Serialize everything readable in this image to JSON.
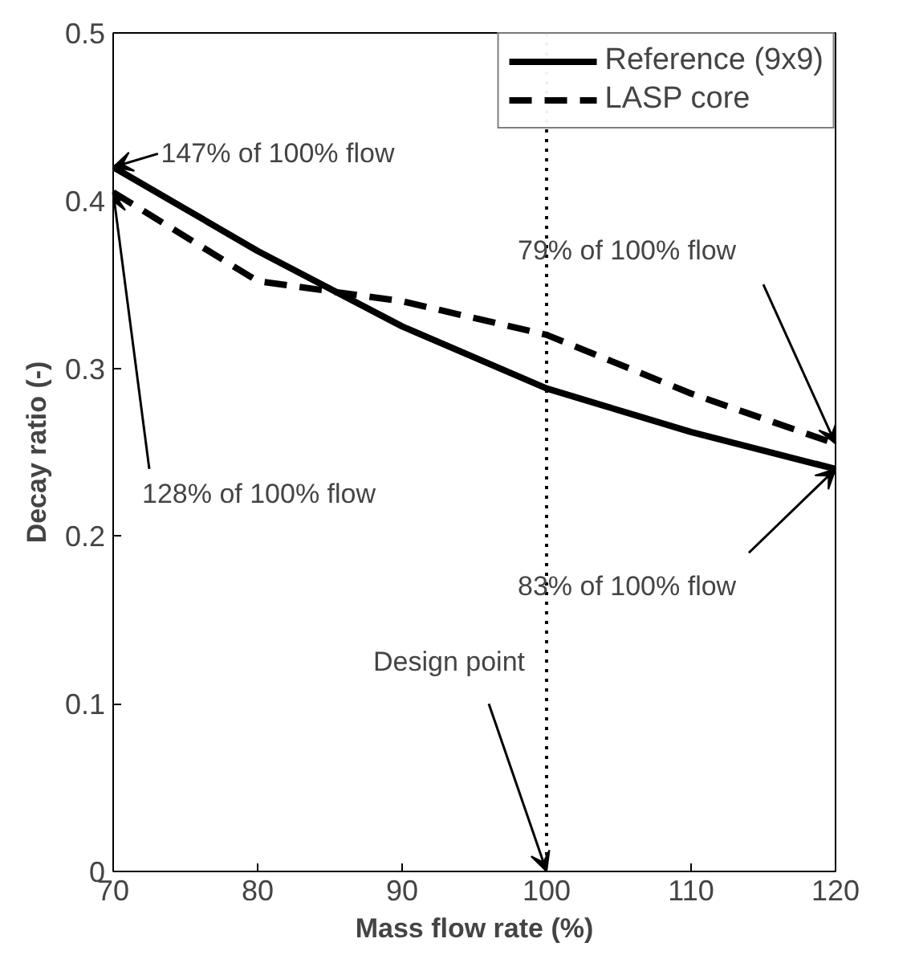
{
  "chart_data": {
    "type": "line",
    "xlabel": "Mass flow rate (%)",
    "ylabel": "Decay ratio (-)",
    "x": [
      70,
      80,
      90,
      100,
      110,
      120
    ],
    "series": [
      {
        "name": "Reference (9x9)",
        "color": "#000000",
        "line_style": "solid",
        "values": [
          0.42,
          0.37,
          0.325,
          0.288,
          0.262,
          0.24
        ]
      },
      {
        "name": "LASP core",
        "color": "#000000",
        "line_style": "dashed",
        "values": [
          0.405,
          0.352,
          0.34,
          0.32,
          0.285,
          0.255
        ]
      }
    ],
    "xlim": [
      70,
      120
    ],
    "xticks": [
      70,
      80,
      90,
      100,
      110,
      120
    ],
    "ylim": [
      0,
      0.5
    ],
    "yticks": [
      0,
      0.1,
      0.2,
      0.3,
      0.4,
      0.5
    ],
    "grid": false,
    "legend": "top right",
    "ref_lines": [
      {
        "axis": "x",
        "value": 100,
        "line_style": "dotted",
        "color": "#000000"
      }
    ],
    "annotations": [
      {
        "text": "147% of 100% flow",
        "x": 70,
        "y": 0.42
      },
      {
        "text": "128% of 100% flow",
        "x": 70,
        "y": 0.405
      },
      {
        "text": "79% of 100% flow",
        "x": 120,
        "y": 0.255
      },
      {
        "text": "83% of 100% flow",
        "x": 120,
        "y": 0.24
      },
      {
        "text": "Design point",
        "x": 100,
        "y": 0
      }
    ]
  }
}
